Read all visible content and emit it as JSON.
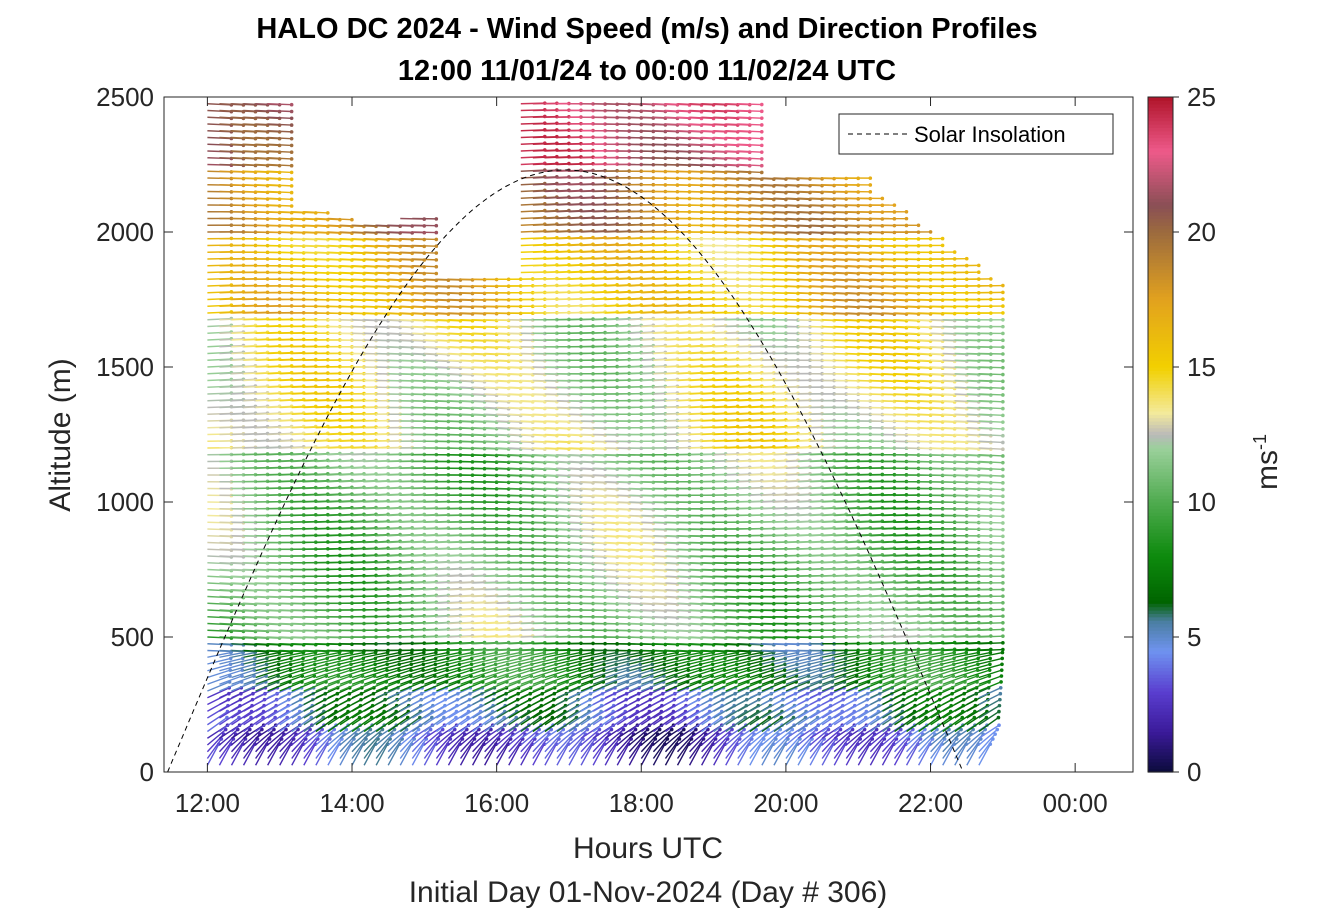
{
  "chart_data": {
    "type": "wind-barb-profile",
    "title_line1": "HALO DC 2024 - Wind Speed (m/s) and Direction Profiles",
    "title_line2": "12:00 11/01/24 to 00:00 11/02/24  UTC",
    "xlabel": "Hours UTC",
    "xlabel2": "Initial Day 01-Nov-2024 (Day # 306)",
    "ylabel": "Altitude (m)",
    "xlim": [
      11.4,
      24.8
    ],
    "ylim": [
      0,
      2500
    ],
    "x_ticks": [
      12,
      14,
      16,
      18,
      20,
      22,
      24
    ],
    "x_tick_labels": [
      "12:00",
      "14:00",
      "16:00",
      "18:00",
      "20:00",
      "22:00",
      "00:00"
    ],
    "y_ticks": [
      0,
      500,
      1000,
      1500,
      2000,
      2500
    ],
    "y_tick_labels": [
      "0",
      "500",
      "1000",
      "1500",
      "2000",
      "2500"
    ],
    "colorbar": {
      "label": "ms",
      "label_exponent": "-1",
      "range": [
        0,
        25
      ],
      "ticks": [
        0,
        5,
        10,
        15,
        20,
        25
      ],
      "tick_labels": [
        "0",
        "5",
        "10",
        "15",
        "20",
        "25"
      ],
      "colors": [
        {
          "v": 0,
          "c": "#0b0b3b"
        },
        {
          "v": 1.5,
          "c": "#3b1a9a"
        },
        {
          "v": 3,
          "c": "#5a3fd0"
        },
        {
          "v": 4.5,
          "c": "#6f93f0"
        },
        {
          "v": 5.6,
          "c": "#4a7ea0"
        },
        {
          "v": 6.3,
          "c": "#006400"
        },
        {
          "v": 8,
          "c": "#0d8a0d"
        },
        {
          "v": 10,
          "c": "#4fab4f"
        },
        {
          "v": 12,
          "c": "#9bd09b"
        },
        {
          "v": 12.5,
          "c": "#b9b9b9"
        },
        {
          "v": 13.3,
          "c": "#f3ea9c"
        },
        {
          "v": 15,
          "c": "#f2d000"
        },
        {
          "v": 17.5,
          "c": "#e2a21e"
        },
        {
          "v": 20,
          "c": "#9c6b3e"
        },
        {
          "v": 21,
          "c": "#8a4f55"
        },
        {
          "v": 23,
          "c": "#ee5a8a"
        },
        {
          "v": 25,
          "c": "#b0142a"
        }
      ]
    },
    "legend": [
      {
        "label": "Solar Insolation",
        "style": "dashed",
        "color": "#000000",
        "position": "top-right"
      }
    ],
    "solar_insolation": {
      "rise_hour": 11.45,
      "set_hour": 22.45,
      "peak_hour": 16.95,
      "peak_altitude": 2230
    },
    "profiles": {
      "start_hour": 12.0,
      "end_hour": 22.8,
      "step_hours": 0.1667,
      "altitude_step_m": 25,
      "description_ref": "wind barbs per 10-min time bin and 25-m altitude bin"
    },
    "wind_speed_layers": [
      {
        "alt": [
          0,
          150
        ],
        "speed": 3
      },
      {
        "alt": [
          150,
          300
        ],
        "speed": 5
      },
      {
        "alt": [
          300,
          500
        ],
        "speed": 7.5
      },
      {
        "alt": [
          500,
          1200
        ],
        "speed": 11
      },
      {
        "alt": [
          1200,
          1700
        ],
        "speed": 13
      },
      {
        "alt": [
          1700,
          2000
        ],
        "speed": 16
      },
      {
        "alt": [
          2000,
          2250
        ],
        "speed": 19
      },
      {
        "alt": [
          2250,
          2500
        ],
        "speed": 22
      }
    ]
  }
}
